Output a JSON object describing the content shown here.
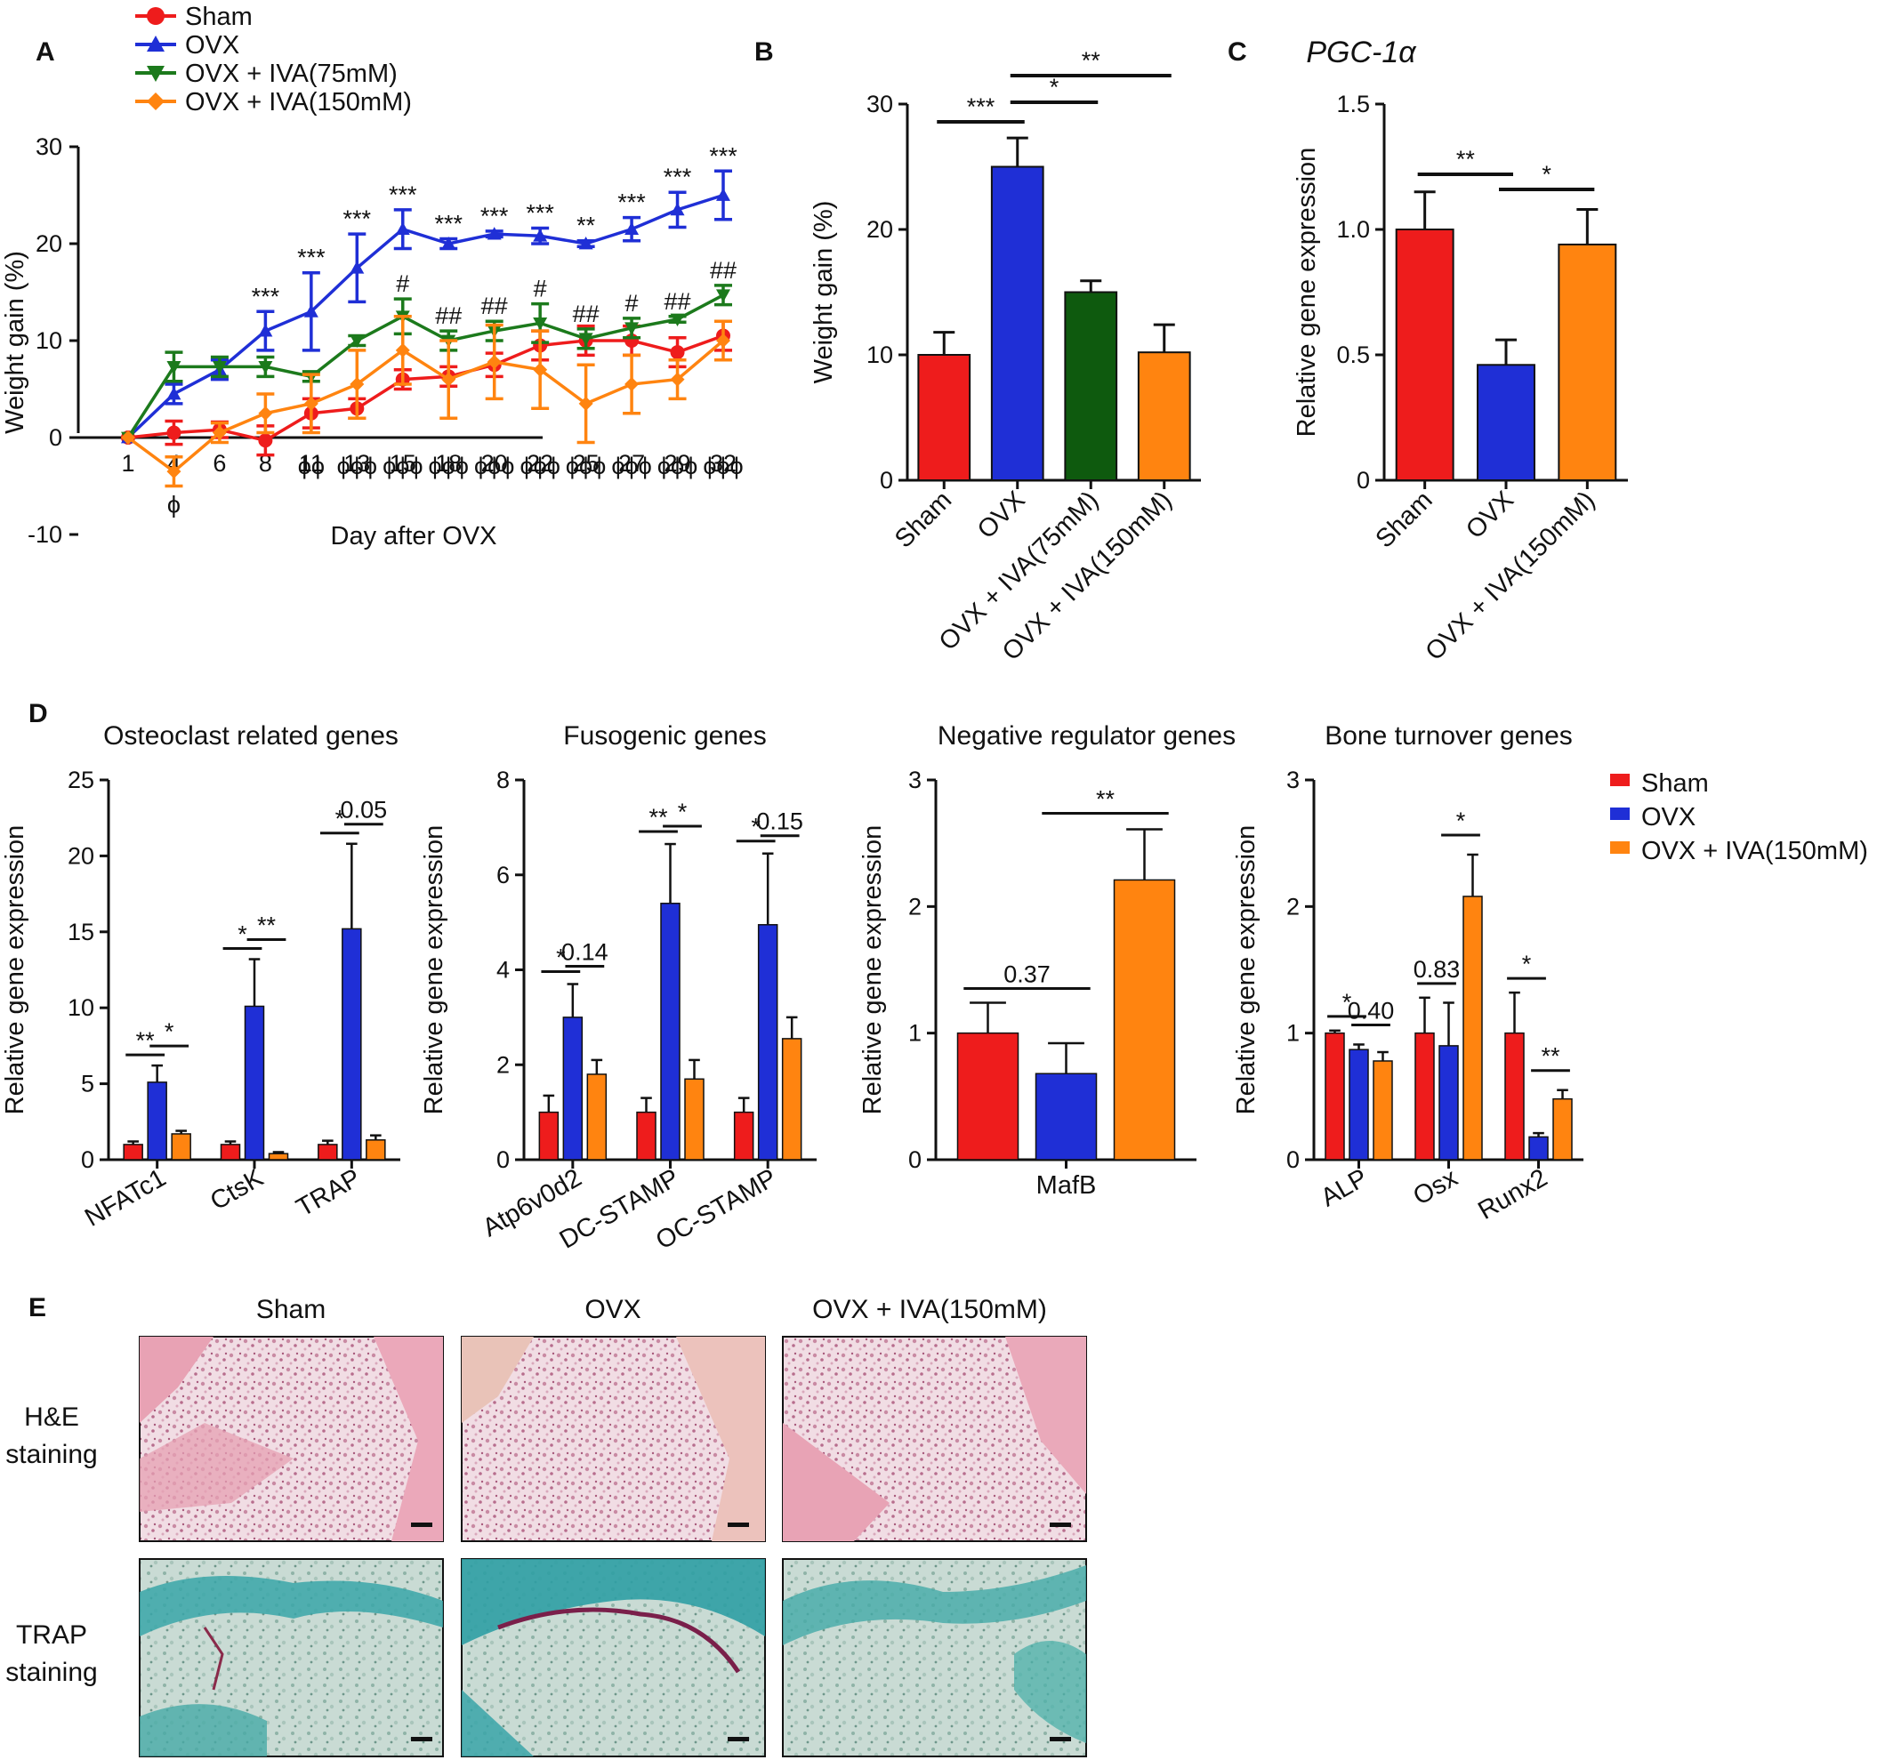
{
  "colors": {
    "sham": "#ee1c1c",
    "ovx": "#1f2fd6",
    "iva75": "#1c7a1c",
    "iva75_bar": "#0e5a0e",
    "iva150": "#ff8410",
    "axis": "#111111"
  },
  "chart_data": [
    {
      "id": "A",
      "type": "line",
      "panel_label": "A",
      "xlabel": "Day after OVX",
      "ylabel": "Weight gain (%)",
      "x": [
        "1",
        "4",
        "6",
        "8",
        "11",
        "13",
        "15",
        "18",
        "20",
        "22",
        "25",
        "27",
        "29",
        "32"
      ],
      "ylim": [
        -10,
        30
      ],
      "yticks": [
        "-10",
        "0",
        "10",
        "20",
        "30"
      ],
      "series": [
        {
          "name": "Sham",
          "key": "sham",
          "marker": "circle",
          "values": [
            0,
            0.5,
            0.8,
            -0.3,
            2.5,
            3,
            6,
            6.3,
            7.5,
            9.5,
            10,
            10,
            8.8,
            10.5
          ],
          "errors": [
            0,
            1.2,
            0.8,
            1.5,
            1.5,
            1,
            1,
            1,
            1.2,
            1.5,
            1.5,
            1.5,
            1.5,
            1.5
          ]
        },
        {
          "name": "OVX",
          "key": "ovx",
          "marker": "triangle",
          "values": [
            0,
            4.5,
            7,
            11,
            13,
            17.5,
            21.5,
            20,
            21,
            20.8,
            20,
            21.5,
            23.5,
            25
          ],
          "errors": [
            0,
            1,
            1,
            2,
            4,
            3.5,
            2,
            0.5,
            0.3,
            0.8,
            0.3,
            1.2,
            1.8,
            2.5
          ]
        },
        {
          "name": "OVX + IVA(75mM)",
          "key": "iva75",
          "marker": "triangle-down",
          "values": [
            0,
            7.3,
            7.3,
            7.3,
            6.3,
            10,
            12.5,
            10,
            11,
            11.8,
            10.2,
            11.3,
            12.2,
            14.7
          ],
          "errors": [
            0,
            1.5,
            1,
            1,
            0.5,
            0.5,
            1.8,
            1,
            1,
            2,
            1,
            1,
            0.3,
            1
          ]
        },
        {
          "name": "OVX + IVA(150mM)",
          "key": "iva150",
          "marker": "diamond",
          "values": [
            0,
            -3.5,
            0.5,
            2.5,
            3.5,
            5.5,
            9,
            6,
            7.8,
            7,
            3.5,
            5.5,
            6,
            10
          ],
          "errors": [
            0,
            1.5,
            1,
            2,
            3,
            3.5,
            3.5,
            4,
            3.8,
            4,
            4,
            3,
            2,
            2
          ]
        }
      ],
      "annotations": [
        {
          "x": "8",
          "text": "***",
          "at": "ovx"
        },
        {
          "x": "11",
          "text": "***",
          "at": "ovx"
        },
        {
          "x": "13",
          "text": "***",
          "at": "ovx"
        },
        {
          "x": "15",
          "text": "***",
          "at": "ovx"
        },
        {
          "x": "18",
          "text": "***",
          "at": "ovx"
        },
        {
          "x": "20",
          "text": "***",
          "at": "ovx"
        },
        {
          "x": "22",
          "text": "***",
          "at": "ovx"
        },
        {
          "x": "25",
          "text": "**",
          "at": "ovx"
        },
        {
          "x": "27",
          "text": "***",
          "at": "ovx"
        },
        {
          "x": "29",
          "text": "***",
          "at": "ovx"
        },
        {
          "x": "32",
          "text": "***",
          "at": "ovx"
        },
        {
          "x": "15",
          "text": "#",
          "at": "iva75"
        },
        {
          "x": "18",
          "text": "##",
          "at": "iva75"
        },
        {
          "x": "20",
          "text": "##",
          "at": "iva75"
        },
        {
          "x": "22",
          "text": "#",
          "at": "iva75"
        },
        {
          "x": "25",
          "text": "##",
          "at": "iva75"
        },
        {
          "x": "27",
          "text": "#",
          "at": "iva75"
        },
        {
          "x": "29",
          "text": "##",
          "at": "iva75"
        },
        {
          "x": "32",
          "text": "##",
          "at": "iva75"
        },
        {
          "x": "4",
          "text": "ϕ",
          "at": "below"
        },
        {
          "x": "11",
          "text": "ϕϕ",
          "at": "below"
        },
        {
          "x": "13",
          "text": "ϕϕϕ",
          "at": "below"
        },
        {
          "x": "15",
          "text": "ϕϕϕ",
          "at": "below"
        },
        {
          "x": "18",
          "text": "ϕϕϕ",
          "at": "below"
        },
        {
          "x": "20",
          "text": "ϕϕϕ",
          "at": "below"
        },
        {
          "x": "22",
          "text": "ϕϕϕ",
          "at": "below"
        },
        {
          "x": "25",
          "text": "ϕϕϕ",
          "at": "below"
        },
        {
          "x": "27",
          "text": "ϕϕϕ",
          "at": "below"
        },
        {
          "x": "29",
          "text": "ϕϕϕ",
          "at": "below"
        },
        {
          "x": "32",
          "text": "ϕϕϕ",
          "at": "below"
        }
      ],
      "legend": "top-left"
    },
    {
      "id": "B",
      "type": "bar",
      "panel_label": "B",
      "ylabel": "Weight gain (%)",
      "categories": [
        "Sham",
        "OVX",
        "OVX + IVA(75mM)",
        "OVX + IVA(150mM)"
      ],
      "colorkeys": [
        "sham",
        "ovx",
        "iva75_bar",
        "iva150"
      ],
      "values": [
        10,
        25,
        15,
        10.2
      ],
      "errors": [
        1.8,
        2.3,
        0.9,
        2.2
      ],
      "ylim": [
        0,
        30
      ],
      "yticks": [
        "0",
        "10",
        "20",
        "30"
      ],
      "comparisons": [
        {
          "from": 0,
          "to": 1,
          "text": "***"
        },
        {
          "from": 1,
          "to": 2,
          "text": "*"
        },
        {
          "from": 1,
          "to": 3,
          "text": "**"
        }
      ]
    },
    {
      "id": "C",
      "type": "bar",
      "panel_label": "C",
      "title": "PGC-1α",
      "ylabel": "Relative gene expression",
      "categories": [
        "Sham",
        "OVX",
        "OVX + IVA(150mM)"
      ],
      "colorkeys": [
        "sham",
        "ovx",
        "iva150"
      ],
      "values": [
        1.0,
        0.46,
        0.94
      ],
      "errors": [
        0.15,
        0.1,
        0.14
      ],
      "ylim": [
        0,
        1.5
      ],
      "yticks": [
        "0",
        "0.5",
        "1.0",
        "1.5"
      ],
      "comparisons": [
        {
          "from": 0,
          "to": 1,
          "text": "**"
        },
        {
          "from": 1,
          "to": 2,
          "text": "*"
        }
      ]
    },
    {
      "id": "D1",
      "type": "bar",
      "panel_label": "D",
      "title": "Osteoclast related genes",
      "ylabel": "Relative gene expression",
      "categories": [
        "NFATc1",
        "CtsK",
        "TRAP"
      ],
      "series": [
        {
          "name": "Sham",
          "key": "sham",
          "values": [
            1,
            1,
            1
          ],
          "errors": [
            0.2,
            0.2,
            0.25
          ]
        },
        {
          "name": "OVX",
          "key": "ovx",
          "values": [
            5.1,
            10.1,
            15.2
          ],
          "errors": [
            1.1,
            3.1,
            5.6
          ]
        },
        {
          "name": "OVX + IVA(150mM)",
          "key": "iva150",
          "values": [
            1.7,
            0.4,
            1.3
          ],
          "errors": [
            0.2,
            0.1,
            0.3
          ]
        }
      ],
      "ylim": [
        0,
        25
      ],
      "yticks": [
        "0",
        "5",
        "10",
        "15",
        "20",
        "25"
      ],
      "comparisons": [
        {
          "cat": 0,
          "pair": "so",
          "text": "**"
        },
        {
          "cat": 0,
          "pair": "oi",
          "text": "*"
        },
        {
          "cat": 1,
          "pair": "so",
          "text": "*"
        },
        {
          "cat": 1,
          "pair": "oi",
          "text": "**"
        },
        {
          "cat": 2,
          "pair": "so",
          "text": "*"
        },
        {
          "cat": 2,
          "pair": "oi",
          "text": "0.05"
        }
      ]
    },
    {
      "id": "D2",
      "type": "bar",
      "title": "Fusogenic genes",
      "ylabel": "Relative gene expression",
      "categories": [
        "Atp6v0d2",
        "DC-STAMP",
        "OC-STAMP"
      ],
      "series": [
        {
          "name": "Sham",
          "key": "sham",
          "values": [
            1,
            1,
            1
          ],
          "errors": [
            0.35,
            0.3,
            0.3
          ]
        },
        {
          "name": "OVX",
          "key": "ovx",
          "values": [
            3.0,
            5.4,
            4.95
          ],
          "errors": [
            0.7,
            1.25,
            1.5
          ]
        },
        {
          "name": "OVX + IVA(150mM)",
          "key": "iva150",
          "values": [
            1.8,
            1.7,
            2.55
          ],
          "errors": [
            0.3,
            0.4,
            0.45
          ]
        }
      ],
      "ylim": [
        0,
        8
      ],
      "yticks": [
        "0",
        "2",
        "4",
        "6",
        "8"
      ],
      "comparisons": [
        {
          "cat": 0,
          "pair": "so",
          "text": "*"
        },
        {
          "cat": 0,
          "pair": "oi",
          "text": "0.14"
        },
        {
          "cat": 1,
          "pair": "so",
          "text": "**"
        },
        {
          "cat": 1,
          "pair": "oi",
          "text": "*"
        },
        {
          "cat": 2,
          "pair": "so",
          "text": "*"
        },
        {
          "cat": 2,
          "pair": "oi",
          "text": "0.15"
        }
      ]
    },
    {
      "id": "D3",
      "type": "bar",
      "title": "Negative regulator genes",
      "ylabel": "Relative gene expression",
      "categories": [
        "MafB"
      ],
      "series": [
        {
          "name": "Sham",
          "key": "sham",
          "values": [
            1.0
          ],
          "errors": [
            0.24
          ]
        },
        {
          "name": "OVX",
          "key": "ovx",
          "values": [
            0.68
          ],
          "errors": [
            0.24
          ]
        },
        {
          "name": "OVX + IVA(150mM)",
          "key": "iva150",
          "values": [
            2.21
          ],
          "errors": [
            0.4
          ]
        }
      ],
      "ylim": [
        0,
        3
      ],
      "yticks": [
        "0",
        "1",
        "2",
        "3"
      ],
      "comparisons": [
        {
          "cat": 0,
          "pair": "so",
          "text": "0.37"
        },
        {
          "cat": 0,
          "pair": "oi",
          "text": "**"
        }
      ]
    },
    {
      "id": "D4",
      "type": "bar",
      "title": "Bone turnover genes",
      "ylabel": "Relative gene expression",
      "categories": [
        "ALP",
        "Osx",
        "Runx2"
      ],
      "series": [
        {
          "name": "Sham",
          "key": "sham",
          "values": [
            1.0,
            1.0,
            1.0
          ],
          "errors": [
            0.02,
            0.28,
            0.32
          ]
        },
        {
          "name": "OVX",
          "key": "ovx",
          "values": [
            0.87,
            0.9,
            0.18
          ],
          "errors": [
            0.04,
            0.34,
            0.03
          ]
        },
        {
          "name": "OVX + IVA(150mM)",
          "key": "iva150",
          "values": [
            0.78,
            2.08,
            0.48
          ],
          "errors": [
            0.07,
            0.33,
            0.07
          ]
        }
      ],
      "ylim": [
        0,
        3
      ],
      "yticks": [
        "0",
        "1",
        "2",
        "3"
      ],
      "comparisons": [
        {
          "cat": 0,
          "pair": "so",
          "text": "*"
        },
        {
          "cat": 0,
          "pair": "oi",
          "text": "0.40"
        },
        {
          "cat": 1,
          "pair": "so",
          "text": "0.83"
        },
        {
          "cat": 1,
          "pair": "oi",
          "text": "*"
        },
        {
          "cat": 2,
          "pair": "so",
          "text": "*"
        },
        {
          "cat": 2,
          "pair": "oi",
          "text": "**"
        }
      ],
      "legend": "right"
    }
  ],
  "panel_E": {
    "label": "E",
    "columns": [
      "Sham",
      "OVX",
      "OVX + IVA(150mM)"
    ],
    "rows": [
      {
        "line1": "H&E",
        "line2": "staining",
        "stain": "he"
      },
      {
        "line1": "TRAP",
        "line2": "staining",
        "stain": "trap"
      }
    ]
  }
}
